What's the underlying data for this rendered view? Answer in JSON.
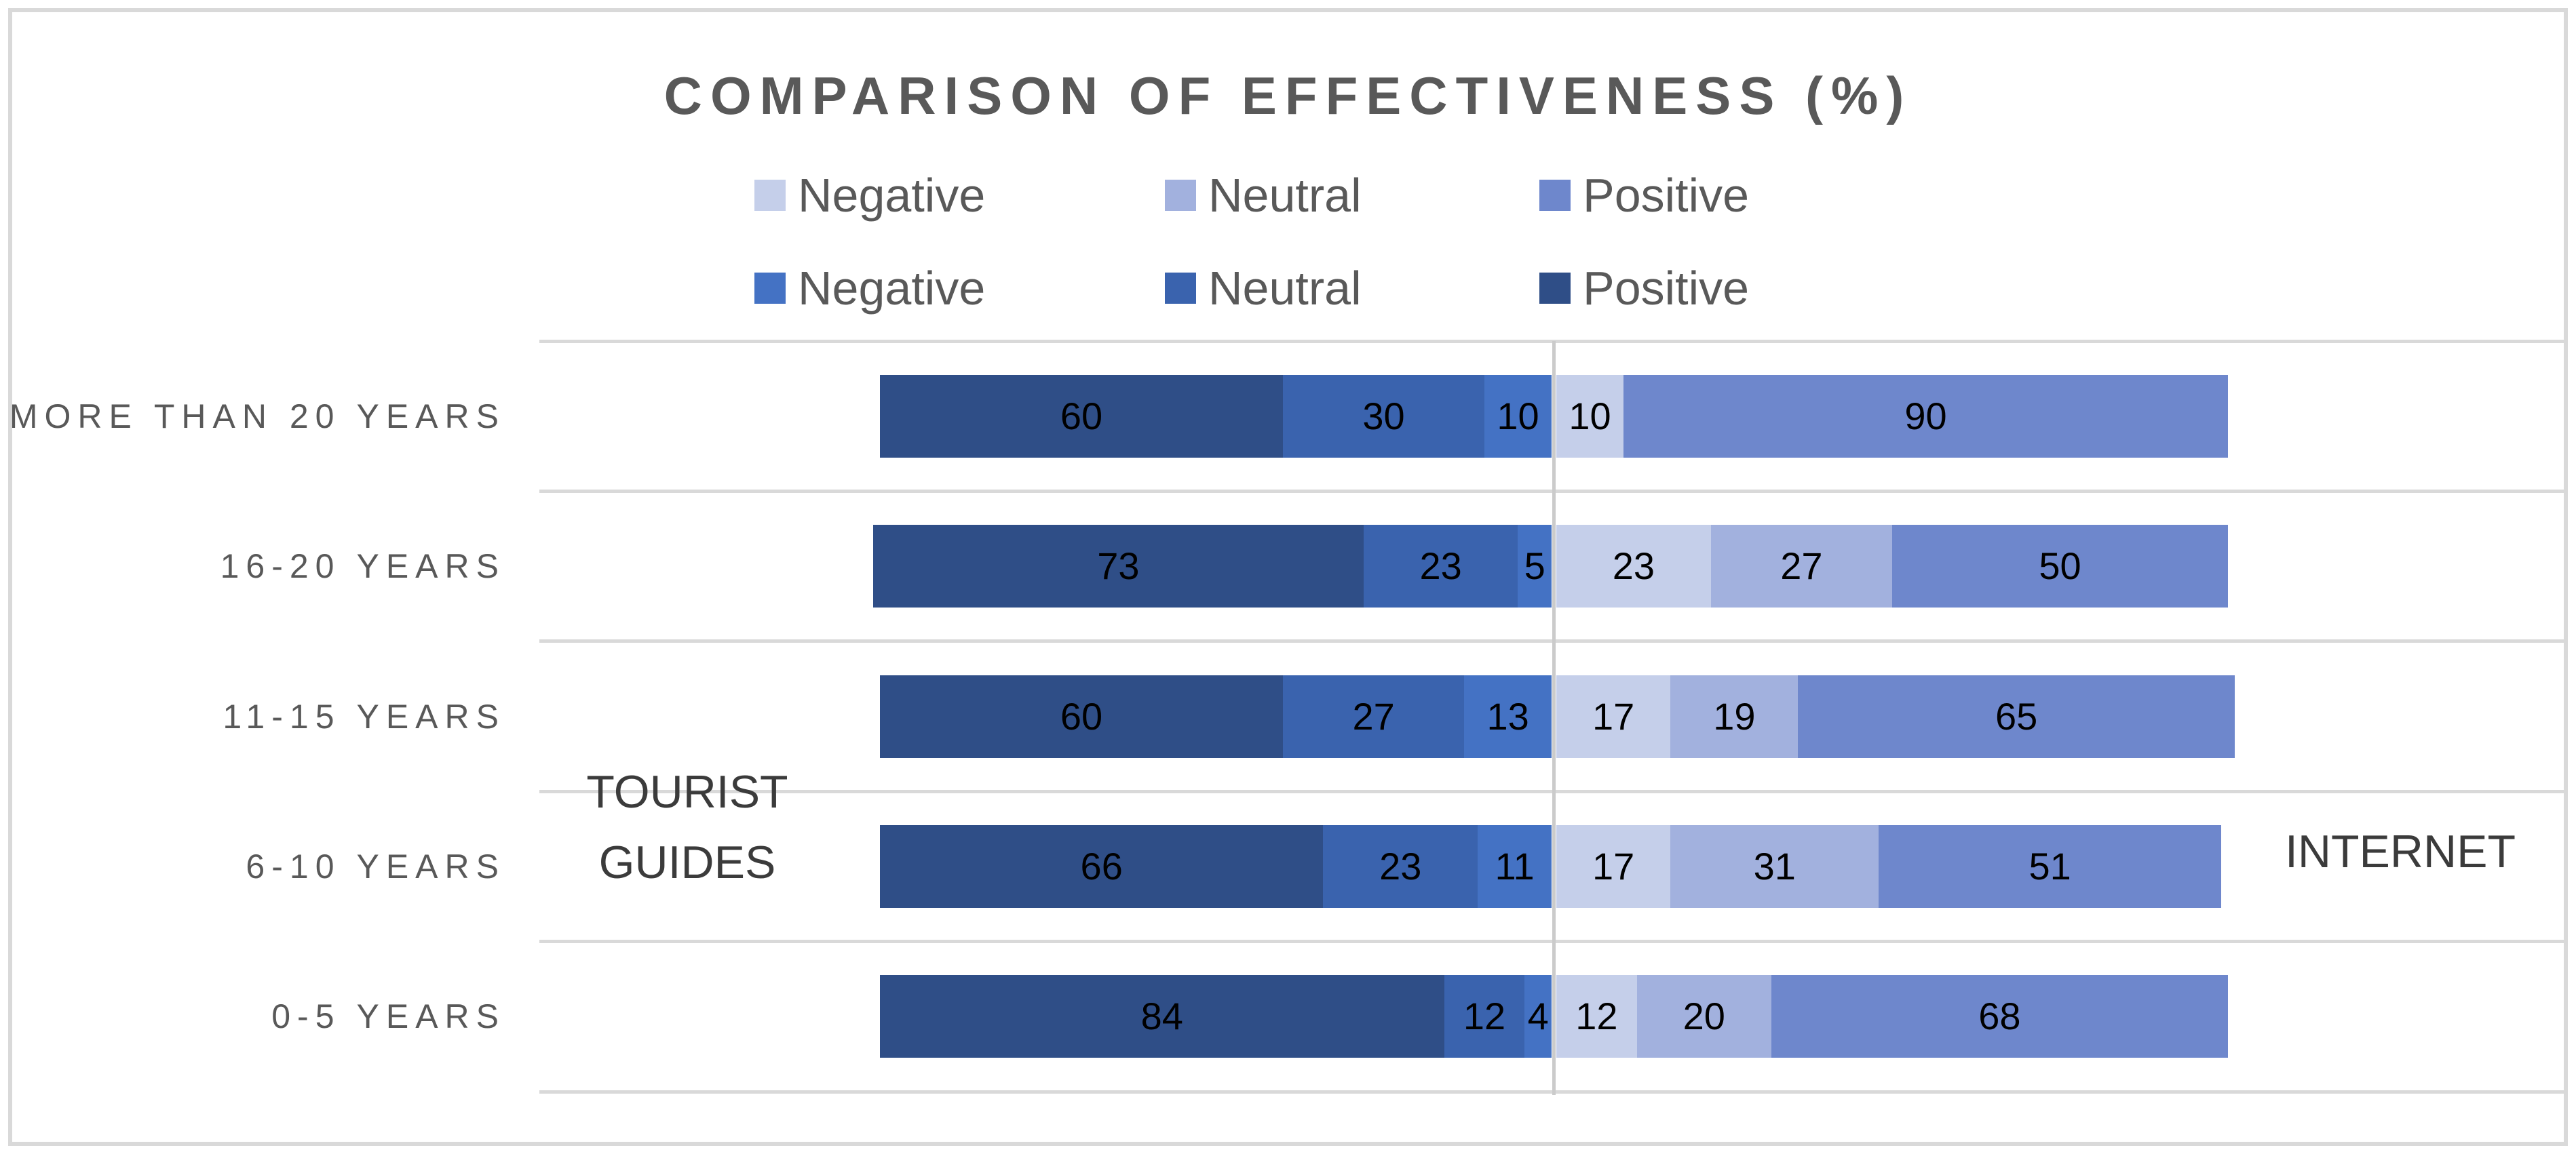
{
  "title": "COMPARISON OF EFFECTIVENESS (%)",
  "legend": {
    "rows": [
      {
        "items": [
          {
            "label": "Negative",
            "color": "#C5CFEA"
          },
          {
            "label": "Neutral",
            "color": "#A2B1DE"
          },
          {
            "label": "Positive",
            "color": "#6E87CC"
          }
        ]
      },
      {
        "items": [
          {
            "label": "Negative",
            "color": "#4472C4"
          },
          {
            "label": "Neutral",
            "color": "#3A63AE"
          },
          {
            "label": "Positive",
            "color": "#2F4E87"
          }
        ]
      }
    ]
  },
  "group_labels": {
    "left": "TOURIST GUIDES",
    "right": "INTERNET"
  },
  "chart_data": {
    "type": "bar",
    "variant": "diverging-stacked-horizontal",
    "title": "COMPARISON OF EFFECTIVENESS (%)",
    "unit": "%",
    "categories": [
      "MORE THAN 20 YEARS",
      "16-20 YEARS",
      "11-15 YEARS",
      "6-10 YEARS",
      "0-5 YEARS"
    ],
    "groups": [
      {
        "name": "TOURIST GUIDES",
        "side": "left",
        "stack_order_from_axis": [
          "Negative",
          "Neutral",
          "Positive"
        ],
        "series": [
          {
            "name": "Negative",
            "color": "#4472C4",
            "values": [
              10,
              5,
              13,
              11,
              4
            ]
          },
          {
            "name": "Neutral",
            "color": "#3A63AE",
            "values": [
              30,
              23,
              27,
              23,
              12
            ]
          },
          {
            "name": "Positive",
            "color": "#2F4E87",
            "values": [
              60,
              73,
              60,
              66,
              84
            ]
          }
        ]
      },
      {
        "name": "INTERNET",
        "side": "right",
        "stack_order_from_axis": [
          "Negative",
          "Neutral",
          "Positive"
        ],
        "series": [
          {
            "name": "Negative",
            "color": "#C5CFEA",
            "values": [
              10,
              23,
              17,
              17,
              12
            ]
          },
          {
            "name": "Neutral",
            "color": "#A2B1DE",
            "values": [
              0,
              27,
              19,
              31,
              20
            ]
          },
          {
            "name": "Positive",
            "color": "#6E87CC",
            "values": [
              90,
              50,
              65,
              51,
              68
            ]
          }
        ]
      }
    ],
    "value_axis_range_each_side": [
      0,
      100
    ],
    "legend_position": "top",
    "gridlines": "horizontal-row-separators"
  },
  "colors": {
    "title_text": "#595959",
    "category_text": "#595959",
    "legend_text": "#595959",
    "group_label_text": "#3B3B3B",
    "value_text": "#000000",
    "gridline": "#D9D9D9",
    "axis_line": "#CBCBCB",
    "border": "#D9D9D9",
    "background": "#FFFFFF"
  }
}
